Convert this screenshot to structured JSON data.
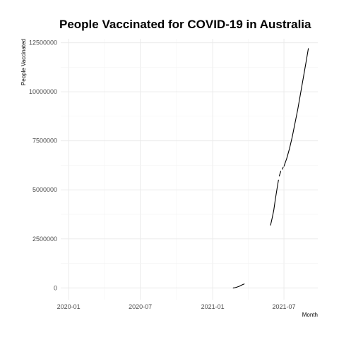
{
  "chart_data": {
    "type": "line",
    "title": "People Vaccinated for COVID-19 in Australia",
    "xlabel": "Month",
    "ylabel": "People Vaccinated",
    "xlim": [
      "2019-12-12",
      "2021-09-25"
    ],
    "ylim": [
      -600000,
      12700000
    ],
    "x_ticks": [
      "2020-01-01",
      "2020-07-01",
      "2021-01-01",
      "2021-07-01"
    ],
    "x_tick_labels": [
      "2020-01",
      "2020-07",
      "2021-01",
      "2021-07"
    ],
    "y_ticks": [
      0,
      2500000,
      5000000,
      7500000,
      10000000,
      12500000
    ],
    "y_tick_labels": [
      "0",
      "2500000",
      "5000000",
      "7500000",
      "10000000",
      "12500000"
    ],
    "grid": true,
    "line_color": "#000000",
    "series": [
      {
        "segments": [
          {
            "x": [
              "2021-02-22",
              "2021-02-26",
              "2021-03-01",
              "2021-03-05",
              "2021-03-09",
              "2021-03-13",
              "2021-03-17",
              "2021-03-22"
            ],
            "y": [
              0,
              10000,
              25000,
              50000,
              80000,
              120000,
              160000,
              200000
            ]
          },
          {
            "x": [
              "2021-05-28",
              "2021-06-01",
              "2021-06-05",
              "2021-06-09",
              "2021-06-13",
              "2021-06-17"
            ],
            "y": [
              3200000,
              3550000,
              3950000,
              4500000,
              5000000,
              5500000
            ]
          },
          {
            "x": [
              "2021-06-19",
              "2021-06-23"
            ],
            "y": [
              5700000,
              5950000
            ]
          },
          {
            "x": [
              "2021-06-27",
              "2021-06-29"
            ],
            "y": [
              6050000,
              6150000
            ]
          },
          {
            "x": [
              "2021-07-01",
              "2021-07-08",
              "2021-07-15",
              "2021-07-22",
              "2021-07-29",
              "2021-08-05",
              "2021-08-12",
              "2021-08-19",
              "2021-08-26",
              "2021-09-01"
            ],
            "y": [
              6200000,
              6600000,
              7100000,
              7700000,
              8400000,
              9100000,
              9900000,
              10700000,
              11500000,
              12200000
            ]
          }
        ]
      }
    ]
  }
}
